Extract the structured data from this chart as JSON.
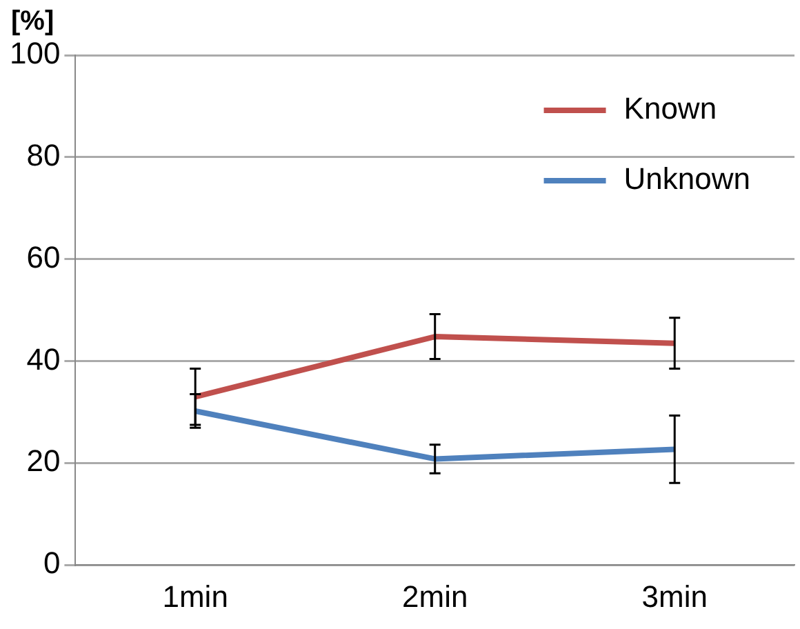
{
  "chart_data": {
    "type": "line",
    "ylabel": "[%]",
    "categories": [
      "1min",
      "2min",
      "3min"
    ],
    "series": [
      {
        "name": "Known",
        "color": "#c0504d",
        "values": [
          33.0,
          44.8,
          43.5
        ],
        "errors": [
          5.5,
          4.4,
          5.0
        ]
      },
      {
        "name": "Unknown",
        "color": "#4f81bd",
        "values": [
          30.2,
          20.8,
          22.7
        ],
        "errors": [
          3.3,
          2.8,
          6.6
        ]
      }
    ],
    "ylim": [
      0,
      100
    ],
    "yticks": [
      0,
      20,
      40,
      60,
      80,
      100
    ],
    "grid": "y",
    "legend": "top right",
    "marker": "none",
    "line_style": "solid"
  }
}
